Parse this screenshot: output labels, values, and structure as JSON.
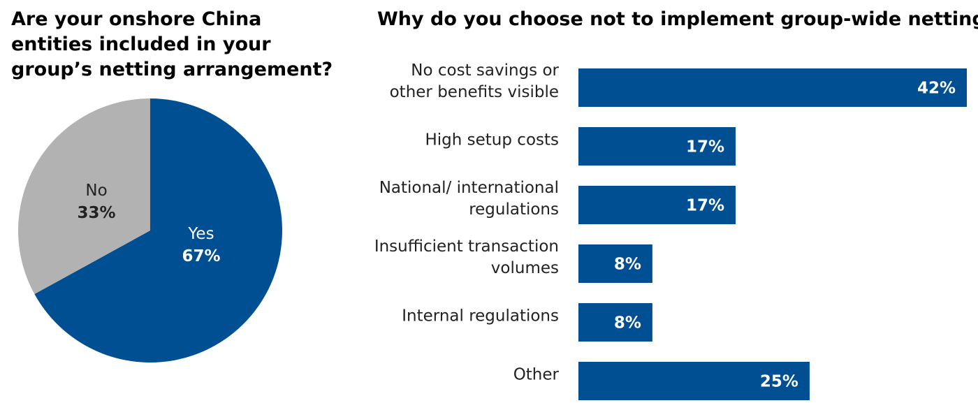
{
  "colors": {
    "primary": "#004f92",
    "secondary": "#b2b2b2"
  },
  "chart_data": [
    {
      "type": "pie",
      "title": "Are your onshore China entities included in your group’s netting arrangement?",
      "slices": [
        {
          "label": "Yes",
          "value": 67,
          "display": "67%",
          "color": "#004f92"
        },
        {
          "label": "No",
          "value": 33,
          "display": "33%",
          "color": "#b2b2b2"
        }
      ]
    },
    {
      "type": "bar",
      "orientation": "horizontal",
      "title": "Why do you choose not to implement group-wide netting?",
      "categories": [
        [
          "No cost savings or",
          "other benefits visible"
        ],
        [
          "High setup costs"
        ],
        [
          "National/ international",
          "regulations"
        ],
        [
          "Insufficient transaction",
          "volumes"
        ],
        [
          "Internal regulations"
        ],
        [
          "Other"
        ]
      ],
      "values": [
        42,
        17,
        17,
        8,
        8,
        25
      ],
      "value_labels": [
        "42%",
        "17%",
        "17%",
        "8%",
        "8%",
        "25%"
      ],
      "xlim": [
        0,
        42
      ],
      "color": "#004f92",
      "grid": false,
      "legend": "none"
    }
  ]
}
